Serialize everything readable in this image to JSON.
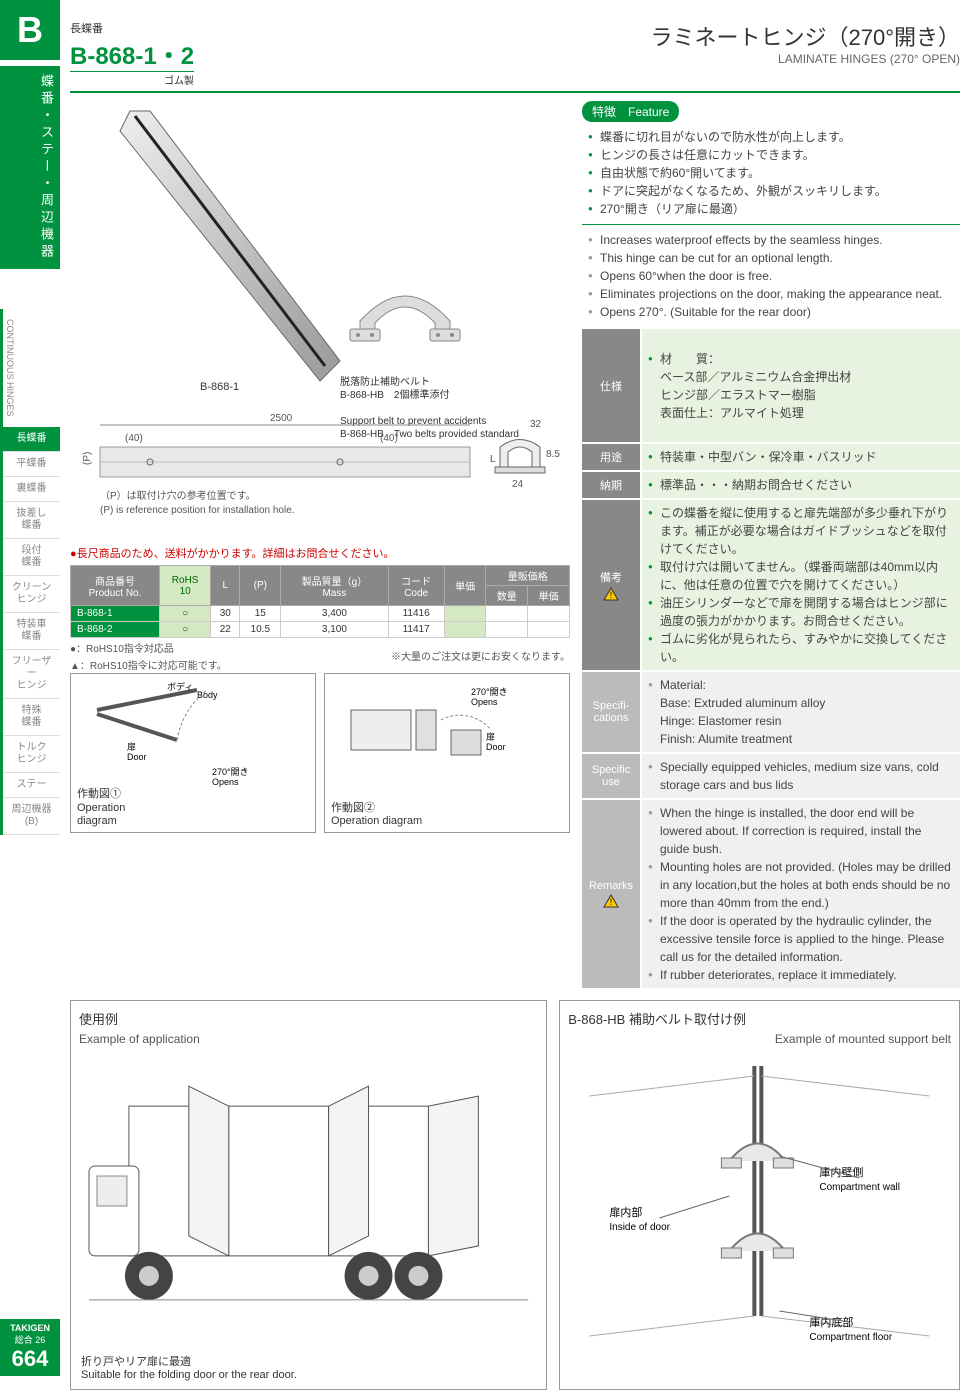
{
  "sidebar": {
    "letter": "B",
    "category_jp": "蝶番・ステー・周辺機器",
    "nav_en": "CONTINUOUS HINGES",
    "items": [
      {
        "label": "長蝶番",
        "active": true
      },
      {
        "label": "平蝶番",
        "active": false
      },
      {
        "label": "裏蝶番",
        "active": false
      },
      {
        "label": "抜差し\n蝶番",
        "active": false
      },
      {
        "label": "段付\n蝶番",
        "active": false
      },
      {
        "label": "クリーン\nヒンジ",
        "active": false
      },
      {
        "label": "特装車\n蝶番",
        "active": false
      },
      {
        "label": "フリーザー\nヒンジ",
        "active": false
      },
      {
        "label": "特殊\n蝶番",
        "active": false
      },
      {
        "label": "トルク\nヒンジ",
        "active": false
      },
      {
        "label": "ステー",
        "active": false
      },
      {
        "label": "周辺機器\n(B)",
        "active": false
      }
    ]
  },
  "footer": {
    "brand": "TAKIGEN",
    "vol": "総合 26",
    "page": "664"
  },
  "header": {
    "small_cat": "長蝶番",
    "code": "B-868-1・2",
    "material": "ゴム製",
    "title_jp": "ラミネートヒンジ（270°開き）",
    "title_en": "LAMINATE  HINGES (270° OPEN)"
  },
  "feature": {
    "header": "特徴　Feature",
    "jp": [
      "蝶番に切れ目がないので防水性が向上します。",
      "ヒンジの長さは任意にカットできます。",
      "自由状態で約60°開いてます。",
      "ドアに突起がなくなるため、外観がスッキリします。",
      "270°開き（リア扉に最適）"
    ],
    "en": [
      "Increases waterproof effects by the seamless hinges.",
      "This hinge can be cut for an optional length.",
      "Opens 60°when the door is free.",
      "Eliminates projections on the door, making the appearance neat.",
      "Opens 270°. (Suitable for the rear door)"
    ]
  },
  "spec": {
    "labels": {
      "spec_jp": "仕様",
      "use_jp": "用途",
      "lead_jp": "納期",
      "note_jp": "備考",
      "spec_en": "Specifi-\ncations",
      "use_en": "Specific\nuse",
      "note_en": "Remarks"
    },
    "spec_jp": "材　　質：\nベース部／アルミニウム合金押出材\nヒンジ部／エラストマー樹脂\n表面仕上：アルマイト処理",
    "use_jp_text": "特装車・中型バン・保冷車・バスリッド",
    "lead_jp_text": "標準品・・・納期お問合せください",
    "note_jp_list": [
      "この蝶番を縦に使用すると扉先端部が多少垂れ下がります。補正が必要な場合はガイドブッシュなどを取付けてください。",
      "取付け穴は開いてません。（蝶番両端部は40mm以内に、他は任意の位置で穴を開けてください。）",
      "油圧シリンダーなどで扉を開閉する場合はヒンジ部に過度の張力がかかります。お問合せください。",
      "ゴムに劣化が見られたら、すみやかに交換してください。"
    ],
    "spec_en": "Material:\nBase: Extruded aluminum alloy\nHinge: Elastomer resin\nFinish: Alumite treatment",
    "use_en_text": "Specially equipped vehicles, medium size vans, cold storage cars and bus lids",
    "note_en_list": [
      "When the hinge is installed, the door end will be lowered about. If correction is required, install the guide bush.",
      "Mounting holes are not provided. (Holes may be drilled in any location,but the holes at both ends should be no more than 40mm from the end.)",
      "If the door is operated by the hydraulic cylinder, the excessive tensile force is applied to the hinge. Please call us for the detailed information.",
      "If rubber deteriorates, replace it immediately."
    ]
  },
  "product_images": {
    "main_label": "B-868-1",
    "belt_label_jp": "脱落防止補助ベルト\nB-868-HB　2個標準添付",
    "belt_label_en": "Support belt to prevent accidents\nB-868-HB　Two belts provided standard"
  },
  "dims": {
    "length": "2500",
    "p1": "(40)",
    "p2": "(40)",
    "P": "(P)",
    "w": "32",
    "h": "8.5",
    "L": "L",
    "base": "24",
    "note_jp": "（P）は取付け穴の参考位置です。",
    "note_en": "(P) is reference position for installation hole."
  },
  "table": {
    "note_red": "●長尺商品のため、送料がかかります。詳細はお問合せください。",
    "headers": {
      "product": "商品番号\nProduct No.",
      "rohs": "RoHS\n10",
      "L": "L",
      "P": "(P)",
      "mass": "製品質量（g）\nMass",
      "code": "コード\nCode",
      "price": "単価",
      "bulk": "量販価格",
      "qty": "数量",
      "unit": "単価"
    },
    "rows": [
      {
        "no": "B-868-1",
        "rohs": "○",
        "L": "30",
        "P": "15",
        "mass": "3,400",
        "code": "11416"
      },
      {
        "no": "B-868-2",
        "rohs": "○",
        "L": "22",
        "P": "10.5",
        "mass": "3,100",
        "code": "11417"
      }
    ],
    "foot1": "●：RoHS10指令対応品",
    "foot2": "▲：RoHS10指令に対応可能です。",
    "bulk_note": "※大量のご注文は更にお安くなります。"
  },
  "diagrams": {
    "op1_jp": "作動図①",
    "op1_en": "Operation\ndiagram",
    "op2_jp": "作動図②",
    "op2_en": "Operation diagram",
    "body_jp": "ボディ",
    "body_en": "Body",
    "door_jp": "扉",
    "door_en": "Door",
    "opens_jp": "270°開き",
    "opens_en": "Opens"
  },
  "examples": {
    "app_jp": "使用例",
    "app_en": "Example of application",
    "app_caption_jp": "折り戸やリア扉に最適",
    "app_caption_en": "Suitable for the folding door or the rear door.",
    "belt_jp": "B-868-HB 補助ベルト取付け例",
    "belt_en": "Example of mounted support belt",
    "inside_jp": "扉内部",
    "inside_en": "Inside of door",
    "wall_jp": "庫内壁側",
    "wall_en": "Compartment wall",
    "floor_jp": "庫内底部",
    "floor_en": "Compartment floor"
  },
  "colors": {
    "green": "#00923f",
    "gray": "#888888",
    "ltgreen": "#e8f2e0",
    "ltgray": "#f0f0f0"
  }
}
